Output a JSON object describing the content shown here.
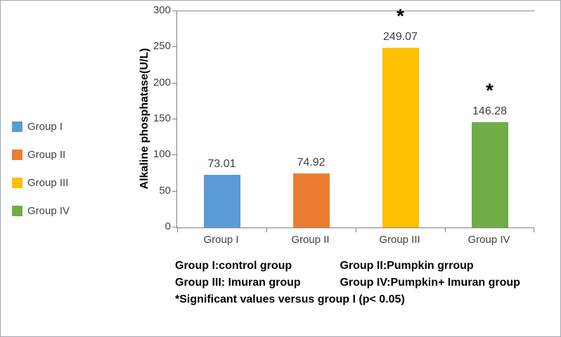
{
  "chart_data": {
    "type": "bar",
    "title": "",
    "xlabel": "",
    "ylabel": "Alkaline phosphatase(U/L)",
    "ylim": [
      0,
      300
    ],
    "yticks": [
      0,
      50,
      100,
      150,
      200,
      250,
      300
    ],
    "grid": false,
    "legend_position": "left",
    "categories": [
      "Group I",
      "Group II",
      "Group III",
      "Group IV"
    ],
    "values": [
      73.01,
      74.92,
      249.07,
      146.28
    ],
    "value_labels": [
      "73.01",
      "74.92",
      "249.07",
      "146.28"
    ],
    "significant": [
      false,
      false,
      true,
      true
    ],
    "significance_marker": "*",
    "colors": [
      "#5B9BD5",
      "#ED7D31",
      "#FFC000",
      "#70AD47"
    ],
    "legend": [
      {
        "label": "Group I",
        "color": "#5B9BD5"
      },
      {
        "label": "Group II",
        "color": "#ED7D31"
      },
      {
        "label": "Group III",
        "color": "#FFC000"
      },
      {
        "label": "Group IV",
        "color": "#70AD47"
      }
    ]
  },
  "footnote": {
    "line1_left": "Group I:control group",
    "line1_right": "Group II:Pumpkin grroup",
    "line2_left": "Group III: Imuran group",
    "line2_right": "Group IV:Pumpkin+ Imuran  group",
    "line3": "*Significant values versus group I (p< 0.05)"
  }
}
